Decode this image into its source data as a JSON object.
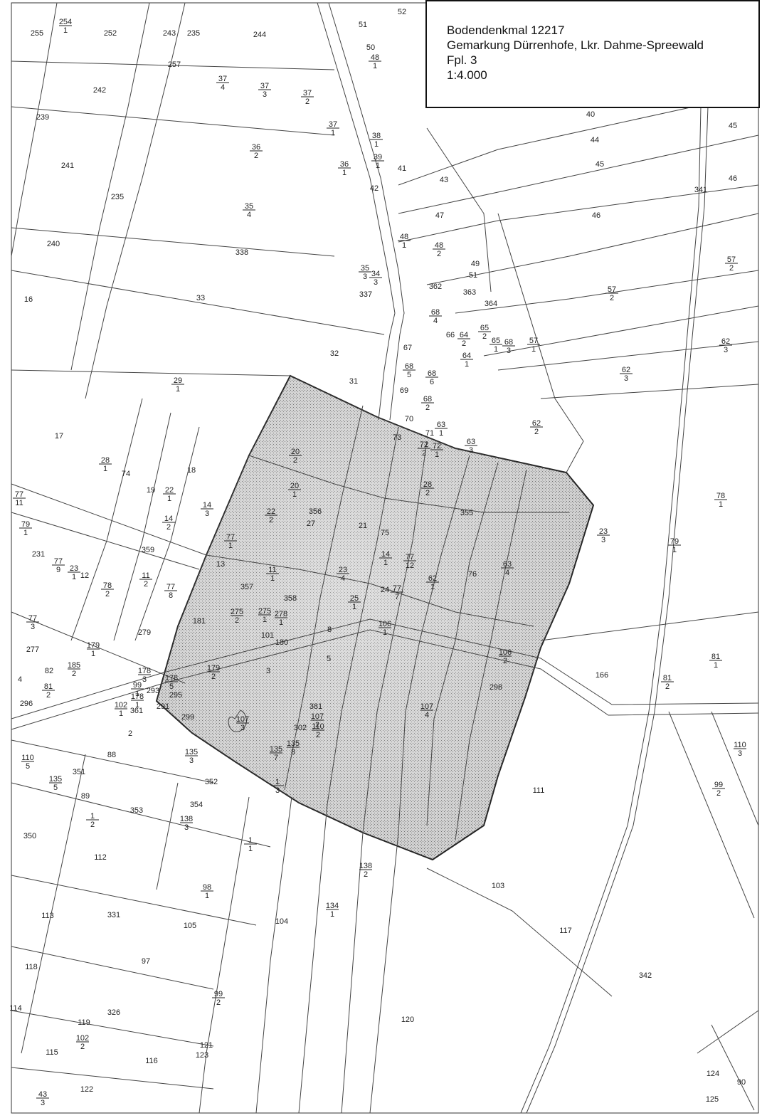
{
  "legend": {
    "title": "Bodendenkmal 12217",
    "subtitle": "Gemarkung Dürrenhofe, Lkr. Dahme-Spreewald",
    "sheet": "Fpl. 3",
    "scale": "1:4.000"
  },
  "colors": {
    "hatch": "#9a9a9a",
    "line": "#333333",
    "paper": "#ffffff"
  },
  "parcels": [
    {
      "n": "255"
    },
    {
      "n": "254",
      "d": "1"
    },
    {
      "n": "252"
    },
    {
      "n": "243"
    },
    {
      "n": "235"
    },
    {
      "n": "244"
    },
    {
      "n": "51"
    },
    {
      "n": "52"
    },
    {
      "n": "50"
    },
    {
      "n": "48",
      "d": "1"
    },
    {
      "n": "257"
    },
    {
      "n": "37",
      "d": "4"
    },
    {
      "n": "37",
      "d": "3"
    },
    {
      "n": "37",
      "d": "2"
    },
    {
      "n": "242"
    },
    {
      "n": "239"
    },
    {
      "n": "37",
      "d": "1"
    },
    {
      "n": "38",
      "d": "1"
    },
    {
      "n": "39",
      "d": "1"
    },
    {
      "n": "36",
      "d": "2"
    },
    {
      "n": "36",
      "d": "1"
    },
    {
      "n": "241"
    },
    {
      "n": "41"
    },
    {
      "n": "43"
    },
    {
      "n": "42"
    },
    {
      "n": "40"
    },
    {
      "n": "44"
    },
    {
      "n": "45"
    },
    {
      "n": "45"
    },
    {
      "n": "46"
    },
    {
      "n": "341"
    },
    {
      "n": "235"
    },
    {
      "n": "35",
      "d": "4"
    },
    {
      "n": "47"
    },
    {
      "n": "46"
    },
    {
      "n": "240"
    },
    {
      "n": "338"
    },
    {
      "n": "48",
      "d": "1"
    },
    {
      "n": "48",
      "d": "2"
    },
    {
      "n": "57",
      "d": "2"
    },
    {
      "n": "35",
      "d": "3"
    },
    {
      "n": "34",
      "d": "3"
    },
    {
      "n": "49"
    },
    {
      "n": "51"
    },
    {
      "n": "362"
    },
    {
      "n": "337"
    },
    {
      "n": "363"
    },
    {
      "n": "364"
    },
    {
      "n": "57",
      "d": "2"
    },
    {
      "n": "16"
    },
    {
      "n": "33"
    },
    {
      "n": "68",
      "d": "4"
    },
    {
      "n": "66"
    },
    {
      "n": "64",
      "d": "2"
    },
    {
      "n": "65",
      "d": "2"
    },
    {
      "n": "65",
      "d": "1"
    },
    {
      "n": "68",
      "d": "3"
    },
    {
      "n": "57",
      "d": "1"
    },
    {
      "n": "62",
      "d": "3"
    },
    {
      "n": "67"
    },
    {
      "n": "32"
    },
    {
      "n": "64",
      "d": "1"
    },
    {
      "n": "68",
      "d": "5"
    },
    {
      "n": "68",
      "d": "6"
    },
    {
      "n": "62",
      "d": "3"
    },
    {
      "n": "29",
      "d": "1"
    },
    {
      "n": "31"
    },
    {
      "n": "69"
    },
    {
      "n": "68",
      "d": "2"
    },
    {
      "n": "70"
    },
    {
      "n": "63",
      "d": "1"
    },
    {
      "n": "62",
      "d": "2"
    },
    {
      "n": "71"
    },
    {
      "n": "73"
    },
    {
      "n": "72",
      "d": "2"
    },
    {
      "n": "72",
      "d": "1"
    },
    {
      "n": "63",
      "d": "3"
    },
    {
      "n": "17"
    },
    {
      "n": "28",
      "d": "1"
    },
    {
      "n": "74"
    },
    {
      "n": "18"
    },
    {
      "n": "19"
    },
    {
      "n": "22",
      "d": "1"
    },
    {
      "n": "20",
      "d": "2"
    },
    {
      "n": "20",
      "d": "1"
    },
    {
      "n": "28",
      "d": "2"
    },
    {
      "n": "77",
      "d": "11"
    },
    {
      "n": "14",
      "d": "3"
    },
    {
      "n": "22",
      "d": "2"
    },
    {
      "n": "356"
    },
    {
      "n": "27"
    },
    {
      "n": "355"
    },
    {
      "n": "78",
      "d": "1"
    },
    {
      "n": "79",
      "d": "1"
    },
    {
      "n": "14",
      "d": "2"
    },
    {
      "n": "21"
    },
    {
      "n": "75"
    },
    {
      "n": "77",
      "d": "1"
    },
    {
      "n": "23",
      "d": "3"
    },
    {
      "n": "79",
      "d": "1"
    },
    {
      "n": "359"
    },
    {
      "n": "231"
    },
    {
      "n": "14",
      "d": "1"
    },
    {
      "n": "77",
      "d": "12"
    },
    {
      "n": "77",
      "d": "9"
    },
    {
      "n": "13"
    },
    {
      "n": "23",
      "d": "1"
    },
    {
      "n": "12"
    },
    {
      "n": "11",
      "d": "1"
    },
    {
      "n": "23",
      "d": "4"
    },
    {
      "n": "76"
    },
    {
      "n": "63",
      "d": "4"
    },
    {
      "n": "62",
      "d": "1"
    },
    {
      "n": "78",
      "d": "2"
    },
    {
      "n": "11",
      "d": "2"
    },
    {
      "n": "357"
    },
    {
      "n": "24"
    },
    {
      "n": "77",
      "d": "7"
    },
    {
      "n": "77",
      "d": "8"
    },
    {
      "n": "358"
    },
    {
      "n": "25",
      "d": "1"
    },
    {
      "n": "77",
      "d": "3"
    },
    {
      "n": "181"
    },
    {
      "n": "275",
      "d": "2"
    },
    {
      "n": "275",
      "d": "1"
    },
    {
      "n": "278",
      "d": "1"
    },
    {
      "n": "279"
    },
    {
      "n": "8"
    },
    {
      "n": "106",
      "d": "1"
    },
    {
      "n": "101"
    },
    {
      "n": "277"
    },
    {
      "n": "179",
      "d": "1"
    },
    {
      "n": "180"
    },
    {
      "n": "5"
    },
    {
      "n": "106",
      "d": "2"
    },
    {
      "n": "81",
      "d": "1"
    },
    {
      "n": "82"
    },
    {
      "n": "185",
      "d": "2"
    },
    {
      "n": "179",
      "d": "2"
    },
    {
      "n": "3"
    },
    {
      "n": "4"
    },
    {
      "n": "178",
      "d": "3"
    },
    {
      "n": "166"
    },
    {
      "n": "81",
      "d": "2"
    },
    {
      "n": "81",
      "d": "2"
    },
    {
      "n": "178",
      "d": "5"
    },
    {
      "n": "298"
    },
    {
      "n": "99",
      "d": "1"
    },
    {
      "n": "293"
    },
    {
      "n": "295"
    },
    {
      "n": "296"
    },
    {
      "n": "178",
      "d": "1"
    },
    {
      "n": "381"
    },
    {
      "n": "107",
      "d": "2"
    },
    {
      "n": "107",
      "d": "4"
    },
    {
      "n": "102",
      "d": "1"
    },
    {
      "n": "361"
    },
    {
      "n": "291"
    },
    {
      "n": "299"
    },
    {
      "n": "302"
    },
    {
      "n": "110",
      "d": "2"
    },
    {
      "n": "107",
      "d": "3"
    },
    {
      "n": "2"
    },
    {
      "n": "135",
      "d": "8"
    },
    {
      "n": "110",
      "d": "3"
    },
    {
      "n": "88"
    },
    {
      "n": "135",
      "d": "3"
    },
    {
      "n": "135",
      "d": "7"
    },
    {
      "n": "110",
      "d": "5"
    },
    {
      "n": "351"
    },
    {
      "n": "135",
      "d": "5"
    },
    {
      "n": "352"
    },
    {
      "n": "1",
      "d": "3"
    },
    {
      "n": "111"
    },
    {
      "n": "99",
      "d": "2"
    },
    {
      "n": "89"
    },
    {
      "n": "353"
    },
    {
      "n": "354"
    },
    {
      "n": "1",
      "d": "2"
    },
    {
      "n": "350"
    },
    {
      "n": "138",
      "d": "3"
    },
    {
      "n": "1",
      "d": "1"
    },
    {
      "n": "112"
    },
    {
      "n": "138",
      "d": "2"
    },
    {
      "n": "103"
    },
    {
      "n": "98",
      "d": "1"
    },
    {
      "n": "113"
    },
    {
      "n": "331"
    },
    {
      "n": "134",
      "d": "1"
    },
    {
      "n": "104"
    },
    {
      "n": "105"
    },
    {
      "n": "117"
    },
    {
      "n": "97"
    },
    {
      "n": "118"
    },
    {
      "n": "342"
    },
    {
      "n": "99",
      "d": "2"
    },
    {
      "n": "114"
    },
    {
      "n": "326"
    },
    {
      "n": "119"
    },
    {
      "n": "120"
    },
    {
      "n": "102",
      "d": "2"
    },
    {
      "n": "121"
    },
    {
      "n": "115"
    },
    {
      "n": "123"
    },
    {
      "n": "116"
    },
    {
      "n": "122"
    },
    {
      "n": "124"
    },
    {
      "n": "90"
    },
    {
      "n": "43",
      "d": "3"
    },
    {
      "n": "125"
    },
    {
      "n": "42"
    }
  ]
}
